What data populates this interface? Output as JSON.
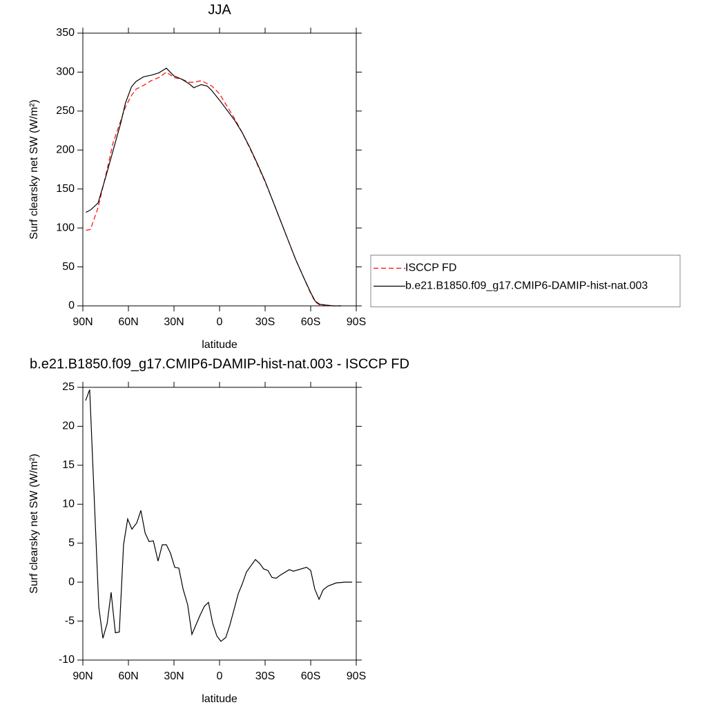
{
  "chart_data": [
    {
      "type": "line",
      "title": "JJA",
      "x_label": "latitude",
      "y_label": "Surf clearsky net SW (W/m²)",
      "x": [
        88,
        85,
        80,
        75,
        70,
        65,
        62,
        58,
        55,
        50,
        45,
        40,
        35,
        30,
        25,
        20,
        17,
        12,
        8,
        5,
        0,
        -5,
        -10,
        -15,
        -20,
        -25,
        -30,
        -35,
        -40,
        -45,
        -50,
        -55,
        -60,
        -63,
        -66,
        -70,
        -75,
        -80
      ],
      "series": [
        {
          "name": "ISCCP FD",
          "color": "#ff0000",
          "dashed": true,
          "values": [
            97,
            98,
            126,
            167,
            210,
            238,
            255,
            270,
            278,
            283,
            289,
            293,
            300,
            293,
            291,
            287,
            287,
            289,
            285,
            282,
            272,
            256,
            240,
            222,
            202,
            181,
            159,
            135,
            110,
            85,
            60,
            38,
            16,
            5,
            1,
            0.5,
            0,
            0
          ]
        },
        {
          "name": "b.e21.B1850.f09_g17.CMIP6-DAMIP-hist-nat.003",
          "color": "#000000",
          "dashed": false,
          "values": [
            120,
            123,
            132,
            165,
            200,
            235,
            260,
            281,
            288,
            294,
            296,
            299,
            305,
            295,
            291,
            285,
            280,
            284,
            282,
            276,
            264,
            251,
            238,
            222,
            203,
            182,
            160,
            135,
            110,
            85,
            60,
            38,
            17,
            6,
            2,
            1,
            0,
            0
          ]
        }
      ],
      "xlim": [
        90,
        -90
      ],
      "xticks": [
        {
          "value": 90,
          "label": "90N"
        },
        {
          "value": 60,
          "label": "60N"
        },
        {
          "value": 30,
          "label": "30N"
        },
        0,
        {
          "value": -30,
          "label": "30S"
        },
        {
          "value": -60,
          "label": "60S"
        },
        {
          "value": -90,
          "label": "90S"
        }
      ],
      "ylim": [
        0,
        350
      ],
      "yticks": [
        0,
        50,
        100,
        150,
        200,
        250,
        300,
        350
      ],
      "legend": "right"
    },
    {
      "type": "line",
      "title": "b.e21.B1850.f09_g17.CMIP6-DAMIP-hist-nat.003 - ISCCP FD",
      "x_label": "latitude",
      "y_label": "Surf clearsky net SW (W/m²)",
      "x": [
        88.2,
        85.5,
        79.5,
        76.8,
        74,
        71.4,
        68.6,
        66,
        63.2,
        60.5,
        57.7,
        54.5,
        51.8,
        49,
        46.4,
        43.6,
        40.5,
        37.7,
        35,
        32.3,
        29.5,
        26.8,
        24,
        21,
        18.2,
        12.7,
        10,
        7.3,
        4.5,
        1.8,
        -0.9,
        -4.1,
        -6.8,
        -12.3,
        -15,
        -17.7,
        -23.6,
        -26.4,
        -29,
        -31.8,
        -34.5,
        -37.3,
        -40,
        -45.9,
        -48.6,
        -57.3,
        -60,
        -62.7,
        -65.5,
        -68.2,
        -71.4,
        -76.8,
        -82.7,
        -87.3
      ],
      "series": [
        {
          "color": "#000000",
          "dashed": false,
          "values": [
            23.3,
            24.7,
            -3.2,
            -7.2,
            -5.3,
            -1.3,
            -6.5,
            -6.4,
            4.8,
            8.1,
            6.8,
            7.6,
            9.2,
            6.3,
            5.2,
            5.3,
            2.7,
            4.8,
            4.8,
            3.7,
            1.9,
            1.8,
            -0.9,
            -2.9,
            -6.7,
            -4.2,
            -3.1,
            -2.6,
            -5.3,
            -6.9,
            -7.6,
            -7.1,
            -5.5,
            -1.5,
            -0.2,
            1.3,
            2.9,
            2.4,
            1.7,
            1.5,
            0.6,
            0.5,
            0.9,
            1.6,
            1.4,
            1.9,
            1.5,
            -0.9,
            -2.2,
            -1.0,
            -0.5,
            -0.1,
            0.0,
            0.0
          ]
        }
      ],
      "xlim": [
        90,
        -90
      ],
      "xticks": [
        {
          "value": 90,
          "label": "90N"
        },
        {
          "value": 60,
          "label": "60N"
        },
        {
          "value": 30,
          "label": "30N"
        },
        0,
        {
          "value": -30,
          "label": "30S"
        },
        {
          "value": -60,
          "label": "60S"
        },
        {
          "value": -90,
          "label": "90S"
        }
      ],
      "ylim": [
        -10,
        25
      ],
      "yticks": [
        -10,
        -5,
        0,
        5,
        10,
        15,
        20,
        25
      ]
    }
  ]
}
